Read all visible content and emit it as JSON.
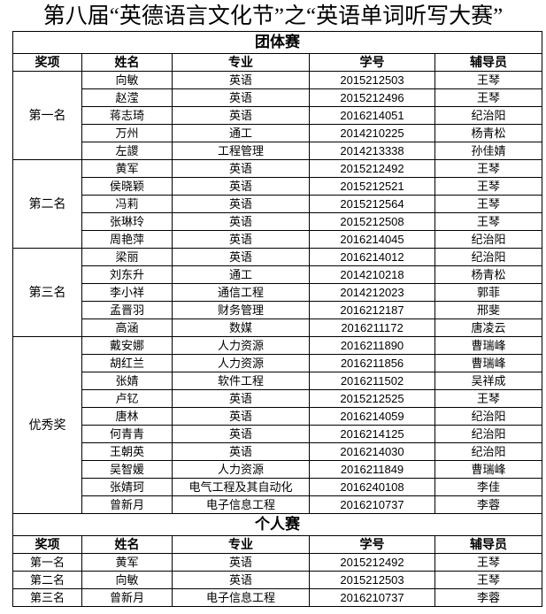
{
  "title": "第八届“英德语言文化节”之“英语单词听写大赛”",
  "headers": [
    "奖项",
    "姓名",
    "专业",
    "学号",
    "辅导员"
  ],
  "team": {
    "label": "团体赛",
    "groups": [
      {
        "award": "第一名",
        "rows": [
          [
            "向敏",
            "英语",
            "2015212503",
            "王琴"
          ],
          [
            "赵滢",
            "英语",
            "2015212496",
            "王琴"
          ],
          [
            "蒋志琦",
            "英语",
            "2016214051",
            "纪治阳"
          ],
          [
            "万州",
            "通工",
            "2014210225",
            "杨青松"
          ],
          [
            "左謖",
            "工程管理",
            "2014213338",
            "孙佳婧"
          ]
        ]
      },
      {
        "award": "第二名",
        "rows": [
          [
            "黄军",
            "英语",
            "2015212492",
            "王琴"
          ],
          [
            "侯晓颖",
            "英语",
            "2015212521",
            "王琴"
          ],
          [
            "冯莉",
            "英语",
            "2015212564",
            "王琴"
          ],
          [
            "张琳玲",
            "英语",
            "2015212508",
            "王琴"
          ],
          [
            "周艳萍",
            "英语",
            "2016214045",
            "纪治阳"
          ]
        ]
      },
      {
        "award": "第三名",
        "rows": [
          [
            "梁丽",
            "英语",
            "2016214012",
            "纪治阳"
          ],
          [
            "刘东升",
            "通工",
            "2014210218",
            "杨青松"
          ],
          [
            "李小祥",
            "通信工程",
            "2014212023",
            "郭菲"
          ],
          [
            "孟晋羽",
            "财务管理",
            "2016212187",
            "邢斐"
          ],
          [
            "高涵",
            "数媒",
            "2016211172",
            "唐凌云"
          ]
        ]
      },
      {
        "award": "优秀奖",
        "rows": [
          [
            "戴安娜",
            "人力资源",
            "2016211890",
            "曹瑞峰"
          ],
          [
            "胡红兰",
            "人力资源",
            "2016211856",
            "曹瑞峰"
          ],
          [
            "张婧",
            "软件工程",
            "2016211502",
            "吴祥成"
          ],
          [
            "卢钇",
            "英语",
            "2015212525",
            "王琴"
          ],
          [
            "唐林",
            "英语",
            "2016214059",
            "纪治阳"
          ],
          [
            "何青青",
            "英语",
            "2016214125",
            "纪治阳"
          ],
          [
            "王朝英",
            "英语",
            "2016214030",
            "纪治阳"
          ],
          [
            "吴智媛",
            "人力资源",
            "2016211849",
            "曹瑞峰"
          ],
          [
            "张婧珂",
            "电气工程及其自动化",
            "2016240108",
            "李佳"
          ],
          [
            "曾新月",
            "电子信息工程",
            "2016210737",
            "李蓉"
          ]
        ]
      }
    ]
  },
  "individual": {
    "label": "个人赛",
    "rows": [
      [
        "第一名",
        "黄军",
        "英语",
        "2015212492",
        "王琴"
      ],
      [
        "第二名",
        "向敏",
        "英语",
        "2015212503",
        "王琴"
      ],
      [
        "第三名",
        "曾新月",
        "电子信息工程",
        "2016210737",
        "李蓉"
      ]
    ]
  }
}
